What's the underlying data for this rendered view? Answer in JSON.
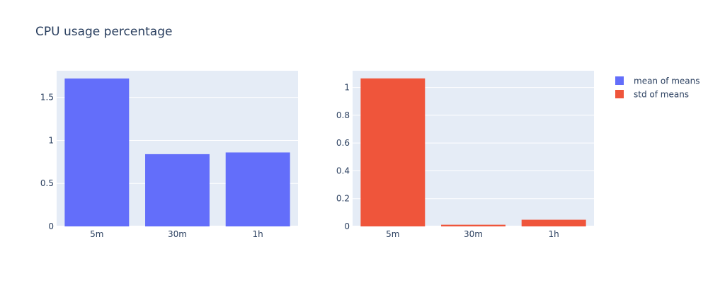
{
  "chart_data": {
    "title": "CPU usage percentage",
    "legend": {
      "placement": "top-right",
      "items": [
        {
          "label": "mean of means",
          "color": "#636efa"
        },
        {
          "label": "std of means",
          "color": "#ef553b"
        }
      ]
    },
    "plot_background": "#e5ecf6",
    "grid": true,
    "subplots": [
      {
        "type": "bar",
        "categories": [
          "5m",
          "30m",
          "1h"
        ],
        "series": [
          {
            "name": "mean of means",
            "values": [
              1.72,
              0.84,
              0.86
            ]
          }
        ],
        "color": "#636efa",
        "ylim": [
          0,
          1.81
        ],
        "yticks": [
          {
            "value": 0,
            "label": "0"
          },
          {
            "value": 0.5,
            "label": "0.5"
          },
          {
            "value": 1,
            "label": "1"
          },
          {
            "value": 1.5,
            "label": "1.5"
          }
        ]
      },
      {
        "type": "bar",
        "categories": [
          "5m",
          "30m",
          "1h"
        ],
        "series": [
          {
            "name": "std of means",
            "values": [
              1.065,
              0.012,
              0.048
            ]
          }
        ],
        "color": "#ef553b",
        "ylim": [
          0,
          1.12
        ],
        "yticks": [
          {
            "value": 0,
            "label": "0"
          },
          {
            "value": 0.2,
            "label": "0.2"
          },
          {
            "value": 0.4,
            "label": "0.4"
          },
          {
            "value": 0.6,
            "label": "0.6"
          },
          {
            "value": 0.8,
            "label": "0.8"
          },
          {
            "value": 1,
            "label": "1"
          }
        ]
      }
    ]
  }
}
